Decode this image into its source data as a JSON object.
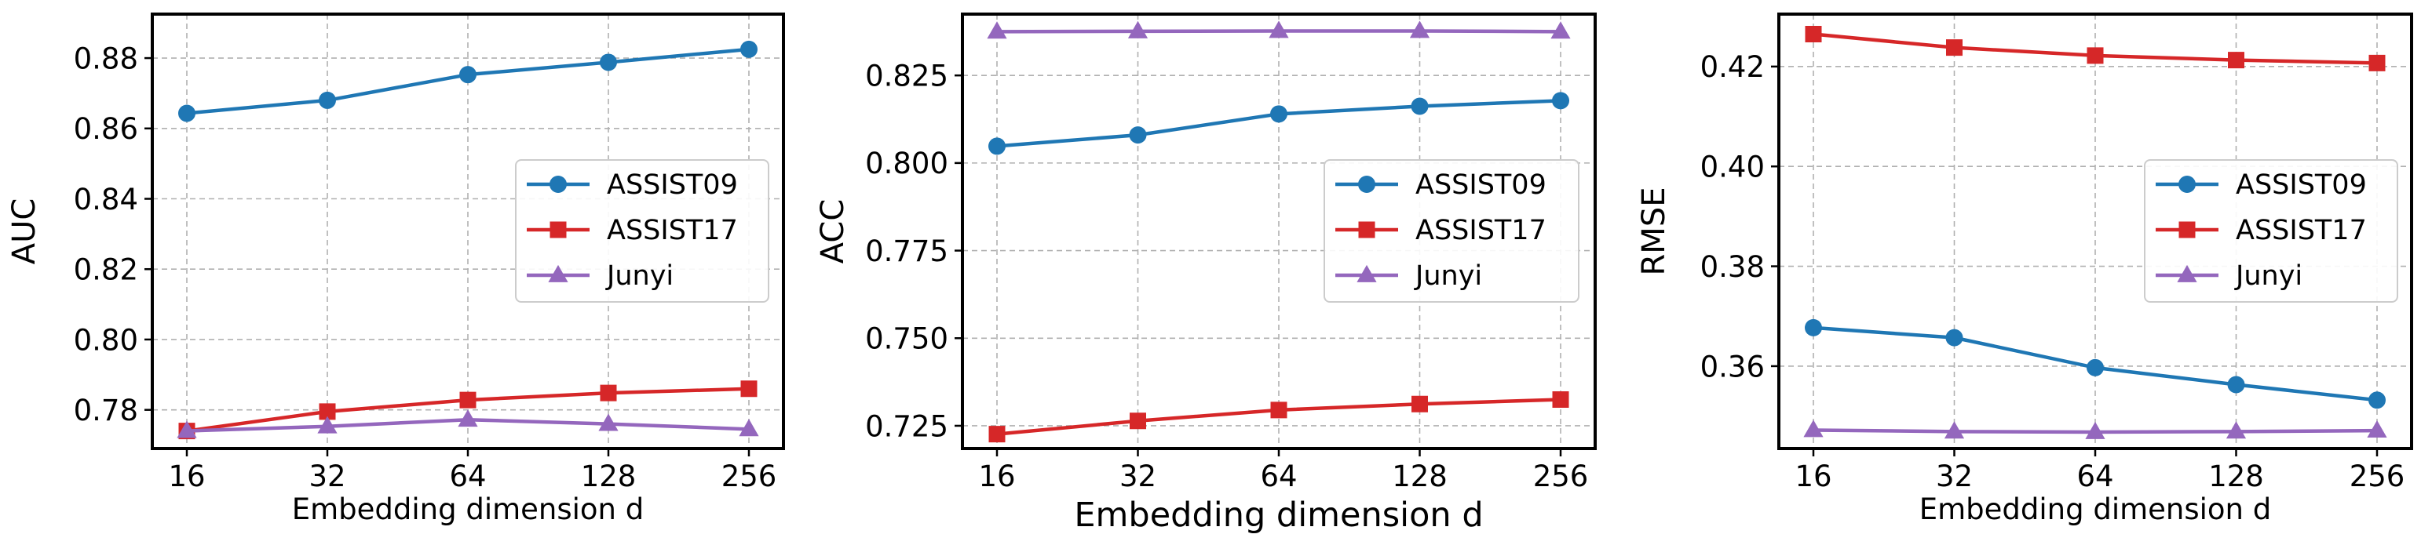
{
  "chart_data": [
    {
      "type": "line",
      "title": "",
      "xlabel": "Embedding dimension d",
      "ylabel": "AUC",
      "categories": [
        "16",
        "32",
        "64",
        "128",
        "256"
      ],
      "ylim": [
        0.769,
        0.8925
      ],
      "yticks": [
        0.78,
        0.8,
        0.82,
        0.84,
        0.86,
        0.88
      ],
      "ytick_labels": [
        "0.78",
        "0.80",
        "0.82",
        "0.84",
        "0.86",
        "0.88"
      ],
      "grid": true,
      "legend_position": "center-right",
      "series": [
        {
          "name": "ASSIST09",
          "color": "#1f77b4",
          "marker": "circle",
          "values": [
            0.8643,
            0.868,
            0.8753,
            0.8788,
            0.8825
          ]
        },
        {
          "name": "ASSIST17",
          "color": "#d62728",
          "marker": "square",
          "values": [
            0.774,
            0.7795,
            0.7828,
            0.7848,
            0.786
          ]
        },
        {
          "name": "Junyi",
          "color": "#9467bd",
          "marker": "triangle",
          "values": [
            0.774,
            0.7753,
            0.7772,
            0.776,
            0.7745
          ]
        }
      ]
    },
    {
      "type": "line",
      "title": "",
      "xlabel": "Embedding dimension d",
      "ylabel": "ACC",
      "categories": [
        "16",
        "32",
        "64",
        "128",
        "256"
      ],
      "ylim": [
        0.7185,
        0.8425
      ],
      "yticks": [
        0.725,
        0.75,
        0.775,
        0.8,
        0.825
      ],
      "ytick_labels": [
        "0.725",
        "0.750",
        "0.775",
        "0.800",
        "0.825"
      ],
      "grid": true,
      "legend_position": "center-right",
      "series": [
        {
          "name": "ASSIST09",
          "color": "#1f77b4",
          "marker": "circle",
          "values": [
            0.8048,
            0.808,
            0.814,
            0.8162,
            0.8178
          ]
        },
        {
          "name": "ASSIST17",
          "color": "#d62728",
          "marker": "square",
          "values": [
            0.7226,
            0.7264,
            0.7295,
            0.7312,
            0.7325
          ]
        },
        {
          "name": "Junyi",
          "color": "#9467bd",
          "marker": "triangle",
          "values": [
            0.8375,
            0.8376,
            0.8377,
            0.8377,
            0.8375
          ]
        }
      ]
    },
    {
      "type": "line",
      "title": "",
      "xlabel": "Embedding dimension d",
      "ylabel": "RMSE",
      "categories": [
        "16",
        "32",
        "64",
        "128",
        "256"
      ],
      "ylim": [
        0.3435,
        0.4305
      ],
      "yticks": [
        0.36,
        0.38,
        0.4,
        0.42
      ],
      "ytick_labels": [
        "0.36",
        "0.38",
        "0.40",
        "0.42"
      ],
      "grid": true,
      "legend_position": "center-right",
      "series": [
        {
          "name": "ASSIST09",
          "color": "#1f77b4",
          "marker": "circle",
          "values": [
            0.3677,
            0.3657,
            0.3597,
            0.3563,
            0.3532
          ]
        },
        {
          "name": "ASSIST17",
          "color": "#d62728",
          "marker": "square",
          "values": [
            0.4265,
            0.4238,
            0.4222,
            0.4213,
            0.4207
          ]
        },
        {
          "name": "Junyi",
          "color": "#9467bd",
          "marker": "triangle",
          "values": [
            0.3472,
            0.3469,
            0.3468,
            0.3469,
            0.3471
          ]
        }
      ]
    }
  ]
}
